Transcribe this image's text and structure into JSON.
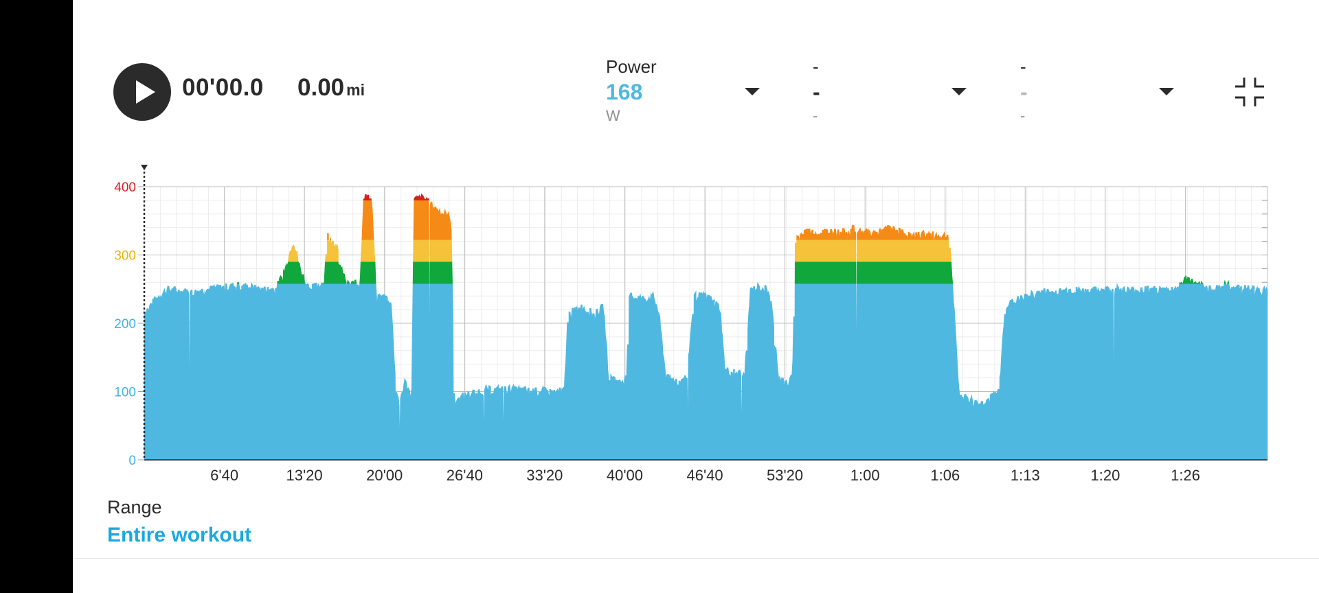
{
  "player": {
    "time": "00'00.0",
    "distance": "0.00",
    "distance_unit": "mi"
  },
  "metrics": [
    {
      "label": "Power",
      "value": "168",
      "unit": "W"
    },
    {
      "label": "-",
      "value": "-",
      "unit": "-"
    },
    {
      "label": "-",
      "value": "-",
      "unit": "-"
    }
  ],
  "icons": {
    "play": "play-icon",
    "dropdown": "caret-down-icon",
    "collapse": "collapse-icon"
  },
  "colors": {
    "accent": "#1aa9e0",
    "line": "#4fb8e0",
    "zone_green": "#10a83c",
    "zone_yellow": "#f5c23a",
    "zone_orange": "#f68a16",
    "zone_red": "#d61f1f",
    "tick_red": "#e31c1c",
    "tick_yellow": "#f0b400",
    "tick_blue": "#3fb6e0"
  },
  "range": {
    "label": "Range",
    "value": "Entire workout"
  },
  "chart_data": {
    "type": "area",
    "title": "",
    "xlabel": "",
    "ylabel": "",
    "x_range_minutes": [
      0,
      93.5
    ],
    "ylim": [
      0,
      400
    ],
    "y_ticks": [
      {
        "value": 0,
        "label": "0",
        "color": "#3fb6e0"
      },
      {
        "value": 100,
        "label": "100",
        "color": "#3fb6e0"
      },
      {
        "value": 200,
        "label": "200",
        "color": "#3fb6e0"
      },
      {
        "value": 300,
        "label": "300",
        "color": "#f0b400"
      },
      {
        "value": 400,
        "label": "400",
        "color": "#e31c1c"
      }
    ],
    "x_ticks": [
      {
        "value": 6.67,
        "label": "6'40"
      },
      {
        "value": 13.33,
        "label": "13'20"
      },
      {
        "value": 20.0,
        "label": "20'00"
      },
      {
        "value": 26.67,
        "label": "26'40"
      },
      {
        "value": 33.33,
        "label": "33'20"
      },
      {
        "value": 40.0,
        "label": "40'00"
      },
      {
        "value": 46.67,
        "label": "46'40"
      },
      {
        "value": 53.33,
        "label": "53'20"
      },
      {
        "value": 60.0,
        "label": "1:00"
      },
      {
        "value": 66.67,
        "label": "1:06"
      },
      {
        "value": 73.33,
        "label": "1:13"
      },
      {
        "value": 80.0,
        "label": "1:20"
      },
      {
        "value": 86.67,
        "label": "1:26"
      }
    ],
    "zones": [
      {
        "from": 0,
        "to": 258,
        "color": "#4fb8e0"
      },
      {
        "from": 258,
        "to": 290,
        "color": "#10a83c"
      },
      {
        "from": 290,
        "to": 322,
        "color": "#f5c23a"
      },
      {
        "from": 322,
        "to": 380,
        "color": "#f68a16"
      },
      {
        "from": 380,
        "to": 400,
        "color": "#d61f1f"
      }
    ],
    "grid": true,
    "legend": "none",
    "series": [
      {
        "values": [
          [
            0,
            215
          ],
          [
            1,
            235
          ],
          [
            2,
            248
          ],
          [
            3,
            246
          ],
          [
            4,
            244
          ],
          [
            5,
            248
          ],
          [
            6,
            250
          ],
          [
            7,
            252
          ],
          [
            8,
            255
          ],
          [
            9,
            250
          ],
          [
            10,
            248
          ],
          [
            11,
            250
          ],
          [
            11.8,
            280
          ],
          [
            12.4,
            320
          ],
          [
            13,
            275
          ],
          [
            13.6,
            255
          ],
          [
            14,
            250
          ],
          [
            15,
            258
          ],
          [
            15.3,
            330
          ],
          [
            16,
            310
          ],
          [
            16.4,
            275
          ],
          [
            17,
            255
          ],
          [
            18,
            258
          ],
          [
            18.3,
            385
          ],
          [
            18.9,
            380
          ],
          [
            19.3,
            235
          ],
          [
            20,
            238
          ],
          [
            20.5,
            232
          ],
          [
            20.9,
            110
          ],
          [
            21.2,
            80
          ],
          [
            21.7,
            112
          ],
          [
            22.3,
            90
          ],
          [
            22.5,
            380
          ],
          [
            23.3,
            382
          ],
          [
            24,
            370
          ],
          [
            25,
            358
          ],
          [
            25.5,
            352
          ],
          [
            25.8,
            80
          ],
          [
            26.5,
            92
          ],
          [
            28,
            100
          ],
          [
            30,
            102
          ],
          [
            32,
            100
          ],
          [
            34,
            98
          ],
          [
            35,
            100
          ],
          [
            35.3,
            212
          ],
          [
            36.4,
            222
          ],
          [
            37.5,
            212
          ],
          [
            38.2,
            222
          ],
          [
            38.6,
            125
          ],
          [
            39.5,
            112
          ],
          [
            40.2,
            120
          ],
          [
            40.4,
            240
          ],
          [
            41.5,
            234
          ],
          [
            42.4,
            236
          ],
          [
            42.8,
            215
          ],
          [
            43.4,
            118
          ],
          [
            44.5,
            115
          ],
          [
            45.2,
            120
          ],
          [
            45.8,
            240
          ],
          [
            47,
            236
          ],
          [
            47.9,
            222
          ],
          [
            48.3,
            130
          ],
          [
            49.2,
            128
          ],
          [
            50,
            122
          ],
          [
            50.5,
            248
          ],
          [
            51.6,
            252
          ],
          [
            52.1,
            240
          ],
          [
            52.8,
            118
          ],
          [
            53.6,
            110
          ],
          [
            54,
            120
          ],
          [
            54.2,
            320
          ],
          [
            55,
            335
          ],
          [
            56,
            330
          ],
          [
            57,
            334
          ],
          [
            58,
            330
          ],
          [
            59,
            336
          ],
          [
            60,
            332
          ],
          [
            61,
            330
          ],
          [
            62,
            338
          ],
          [
            63,
            332
          ],
          [
            64,
            326
          ],
          [
            65,
            330
          ],
          [
            66,
            326
          ],
          [
            67,
            326
          ],
          [
            67.8,
            95
          ],
          [
            68.5,
            88
          ],
          [
            69.5,
            80
          ],
          [
            70.5,
            90
          ],
          [
            71.2,
            100
          ],
          [
            71.7,
            225
          ],
          [
            73,
            235
          ],
          [
            74,
            240
          ],
          [
            75,
            245
          ],
          [
            76,
            243
          ],
          [
            77,
            248
          ],
          [
            78,
            246
          ],
          [
            79,
            246
          ],
          [
            80,
            248
          ],
          [
            81,
            248
          ],
          [
            82,
            246
          ],
          [
            83,
            249
          ],
          [
            84,
            248
          ],
          [
            85,
            247
          ],
          [
            86,
            250
          ],
          [
            86.8,
            265
          ],
          [
            87.5,
            255
          ],
          [
            88.5,
            250
          ],
          [
            89.5,
            253
          ],
          [
            90.5,
            252
          ],
          [
            91.5,
            250
          ],
          [
            92.5,
            248
          ],
          [
            93.5,
            245
          ]
        ]
      }
    ]
  }
}
